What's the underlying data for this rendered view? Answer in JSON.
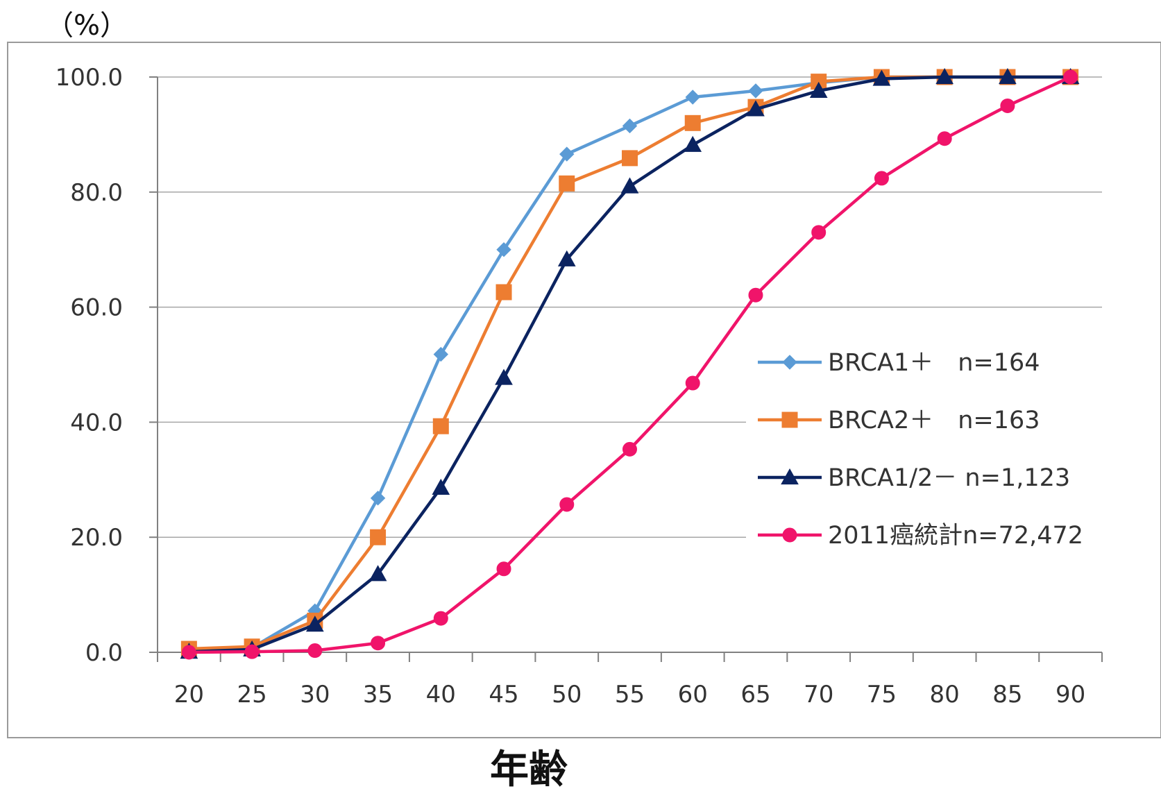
{
  "chart_data": {
    "type": "line",
    "ylabel": "（%）",
    "xlabel": "年齢",
    "x": [
      20,
      25,
      30,
      35,
      40,
      45,
      50,
      55,
      60,
      65,
      70,
      75,
      80,
      85,
      90
    ],
    "x_tick_labels": [
      "20",
      "25",
      "30",
      "35",
      "40",
      "45",
      "50",
      "55",
      "60",
      "65",
      "70",
      "75",
      "80",
      "85",
      "90"
    ],
    "y_tick_labels": [
      "0.0",
      "20.0",
      "40.0",
      "60.0",
      "80.0",
      "100.0"
    ],
    "y_ticks": [
      0,
      20,
      40,
      60,
      80,
      100
    ],
    "ylim": [
      0,
      100
    ],
    "grid": "horizontal",
    "legend_position": "right",
    "series": [
      {
        "name": "BRCA1＋　n=164",
        "marker": "diamond",
        "color": "#5B9BD5",
        "values": [
          0.3,
          0.8,
          7.2,
          26.8,
          51.8,
          70.0,
          86.6,
          91.5,
          96.5,
          97.6,
          99.0,
          100,
          100,
          100,
          100
        ]
      },
      {
        "name": "BRCA2＋　n=163",
        "marker": "square",
        "color": "#ED7D31",
        "values": [
          0.6,
          1.0,
          5.5,
          20.0,
          39.3,
          62.6,
          81.5,
          85.9,
          92.0,
          94.8,
          99.2,
          100,
          100,
          100,
          100
        ]
      },
      {
        "name": "BRCA1/2－ n=1,123",
        "marker": "triangle",
        "color": "#0B2360",
        "values": [
          0.1,
          0.5,
          4.8,
          13.6,
          28.6,
          47.7,
          68.3,
          81.0,
          88.2,
          94.4,
          97.6,
          99.7,
          100,
          100,
          100
        ]
      },
      {
        "name": "2011癌統計n=72,472",
        "marker": "circle",
        "color": "#F0146A",
        "values": [
          0.0,
          0.1,
          0.3,
          1.6,
          5.9,
          14.5,
          25.7,
          35.3,
          46.8,
          62.1,
          73.0,
          82.4,
          89.3,
          95.0,
          100
        ]
      }
    ]
  }
}
